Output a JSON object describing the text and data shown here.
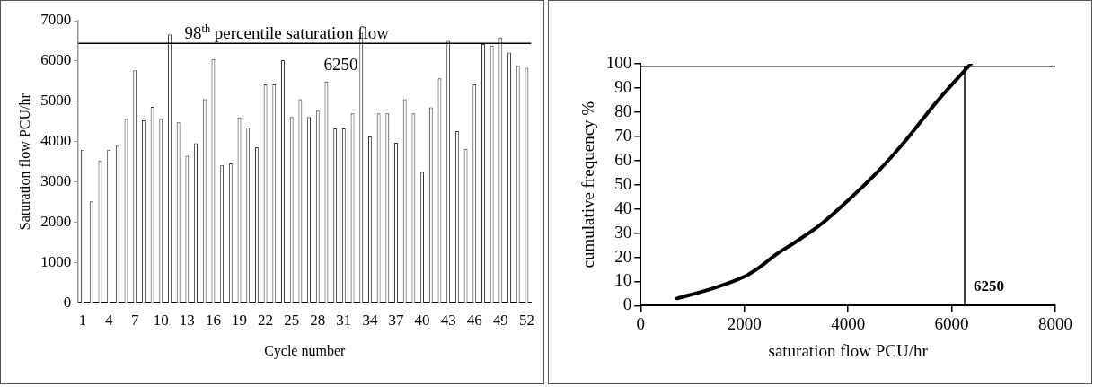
{
  "chart_data": [
    {
      "type": "bar",
      "xlabel": "Cycle number",
      "ylabel": "Saturation flow PCU/hr",
      "categories": [
        "1",
        null,
        null,
        "4",
        null,
        null,
        "7",
        null,
        null,
        "10",
        null,
        null,
        "13",
        null,
        null,
        "16",
        null,
        null,
        "19",
        null,
        null,
        "22",
        null,
        null,
        "25",
        null,
        null,
        "28",
        null,
        null,
        "31",
        null,
        null,
        "34",
        null,
        null,
        "37",
        null,
        null,
        "40",
        null,
        null,
        "43",
        null,
        null,
        "46",
        null,
        null,
        "49",
        null,
        null,
        "52"
      ],
      "series": [
        {
          "color": "#ffffff",
          "values": [
            3800,
            2520,
            3530,
            3800,
            3900,
            4570,
            5770,
            4530,
            4860,
            4570,
            6660,
            4480,
            3650,
            3960,
            5050,
            6050,
            3420,
            3460,
            4600,
            4350,
            3860,
            5420,
            5420,
            6020,
            4610,
            5050,
            4610,
            4770,
            5490,
            4330,
            4330,
            4700,
            6700,
            4130,
            4700,
            4700,
            3970,
            5050,
            4700,
            3250,
            4850,
            5570,
            6500,
            4260,
            3820,
            5420,
            6420,
            6380,
            6580,
            6210,
            5880,
            5830
          ]
        }
      ],
      "ylim": [
        0,
        7000
      ],
      "yticks": [
        0,
        1000,
        2000,
        3000,
        4000,
        5000,
        6000,
        7000
      ],
      "grid": false,
      "legend": false,
      "ref_lines": [
        {
          "axis": "y",
          "value": 6440,
          "label": "98$^{th}$ percentile saturation flow",
          "color": "#000000"
        }
      ],
      "annotations": [
        "6250"
      ]
    },
    {
      "type": "line",
      "xlabel": "saturation flow PCU/hr",
      "ylabel": "cumulative frequency %",
      "series": [
        {
          "color": "#000000",
          "x": [
            700,
            1300,
            2000,
            2300,
            2600,
            3000,
            3500,
            4000,
            4600,
            5100,
            5700,
            6370
          ],
          "values": [
            3,
            6.5,
            12,
            16,
            21,
            26.5,
            34,
            43.5,
            56,
            68,
            84,
            100
          ]
        }
      ],
      "xlim": [
        0,
        8000
      ],
      "xticks": [
        0,
        2000,
        4000,
        6000,
        8000
      ],
      "ylim": [
        0,
        100
      ],
      "yticks": [
        0,
        10,
        20,
        30,
        40,
        50,
        60,
        70,
        80,
        90,
        100
      ],
      "grid": false,
      "legend": false,
      "marker": "none",
      "line_style": "solid",
      "ref_lines": [
        {
          "axis": "y",
          "value": 99,
          "color": "#000000"
        },
        {
          "axis": "x",
          "value": 6250,
          "label": "6250",
          "color": "#000000"
        }
      ]
    }
  ]
}
